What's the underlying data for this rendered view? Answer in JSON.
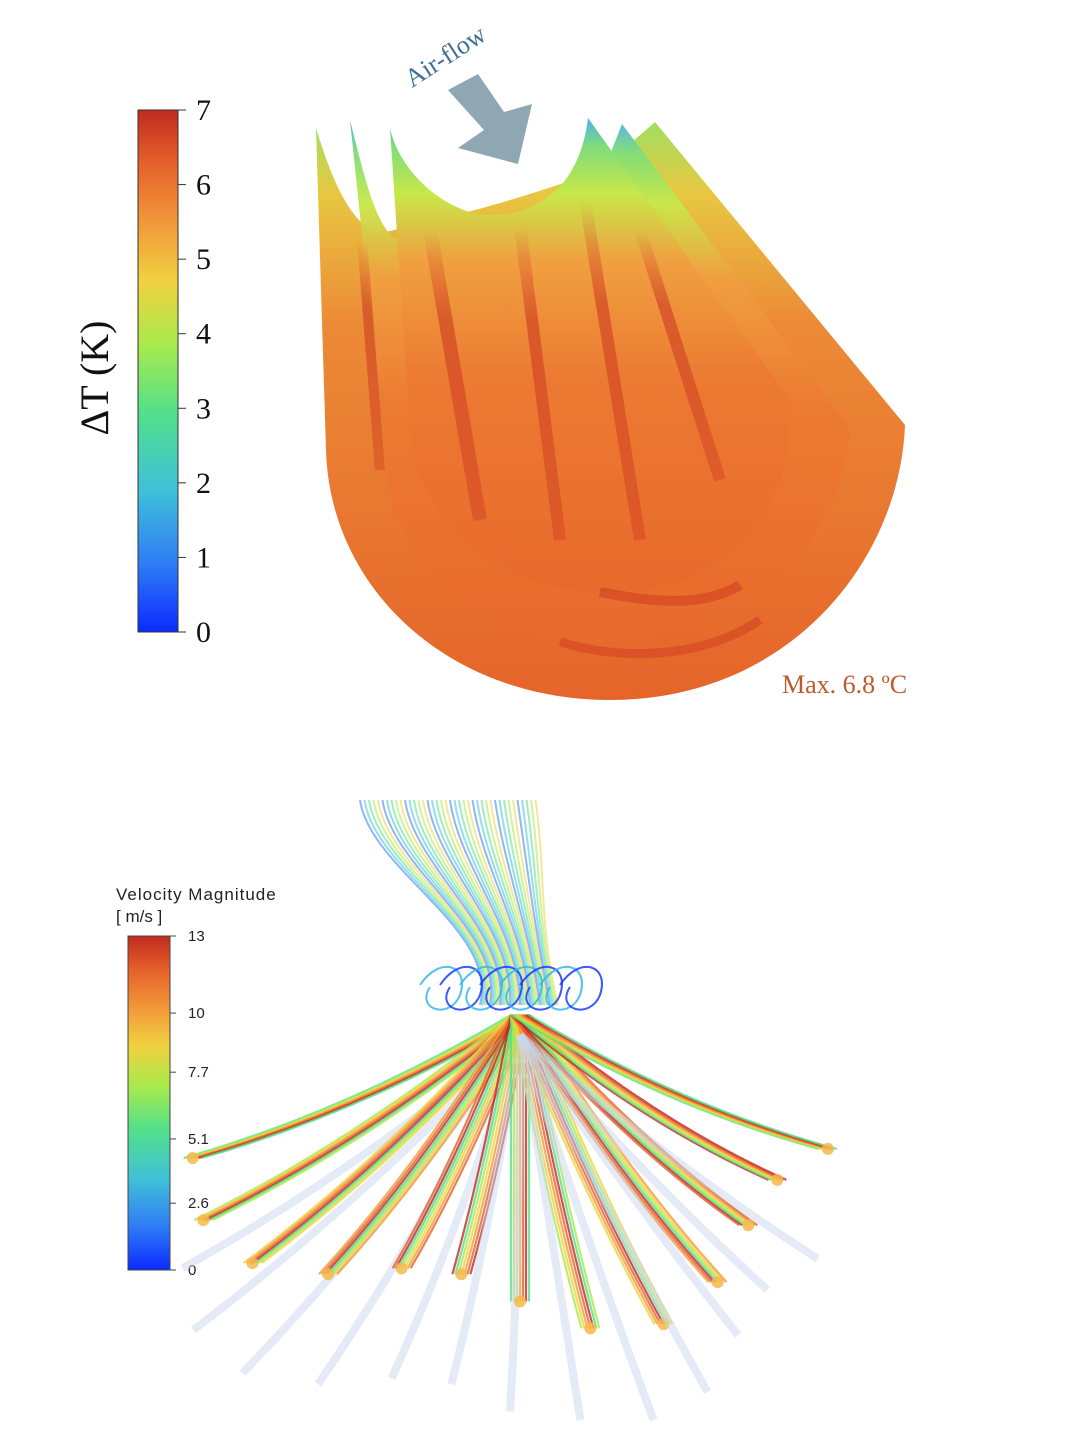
{
  "temperature_panel": {
    "colorbar_title": "ΔT (K)",
    "ticks": [
      "0",
      "1",
      "2",
      "3",
      "4",
      "5",
      "6",
      "7"
    ],
    "range": [
      0,
      7
    ],
    "airflow_label": "Air-flow",
    "max_label": "Max. 6.8 ºC",
    "colors": {
      "arrow": "#8fa6b3",
      "airflow_text": "#3f6f98",
      "max_text": "#c05a2a"
    }
  },
  "velocity_panel": {
    "colorbar_title": "Velocity Magnitude",
    "colorbar_unit": "[ m/s ]",
    "ticks": [
      "0",
      "2.6",
      "5.1",
      "7.7",
      "10",
      "13"
    ],
    "range": [
      0,
      13
    ]
  },
  "colormap": [
    "#0b2bff",
    "#2f7cf5",
    "#3fc0d8",
    "#52e08a",
    "#a8ea4c",
    "#f0d240",
    "#f29a3a",
    "#e5602a",
    "#c02a1f"
  ]
}
